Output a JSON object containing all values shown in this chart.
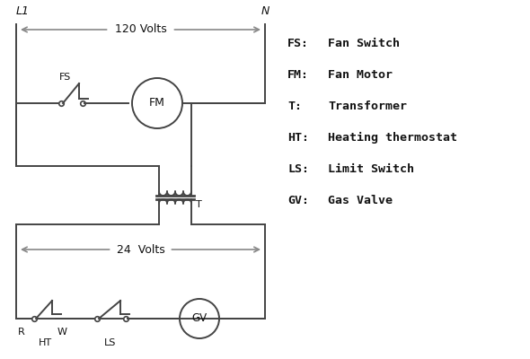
{
  "bg_color": "#ffffff",
  "line_color": "#444444",
  "text_color": "#111111",
  "arrow_color": "#888888",
  "legend_items": [
    [
      "FS:",
      "Fan Switch"
    ],
    [
      "FM:",
      "Fan Motor"
    ],
    [
      "T:",
      "Transformer"
    ],
    [
      "HT:",
      "Heating thermostat"
    ],
    [
      "LS:",
      "Limit Switch"
    ],
    [
      "GV:",
      "Gas Valve"
    ]
  ],
  "fig_w": 5.9,
  "fig_h": 4.0,
  "dpi": 100
}
